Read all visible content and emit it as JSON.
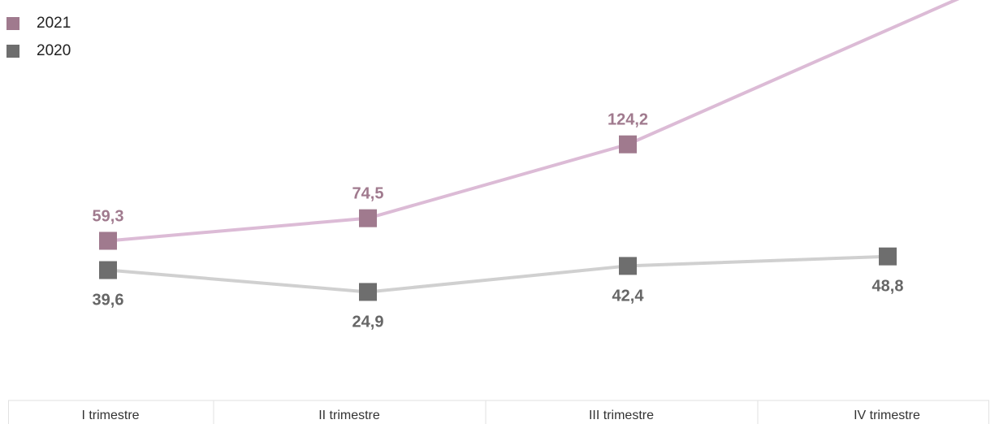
{
  "chart_data": {
    "type": "line",
    "categories": [
      "I trimestre",
      "II trimestre",
      "III trimestre",
      "IV trimestre"
    ],
    "series": [
      {
        "name": "2021",
        "values": [
          59.3,
          74.5,
          124.2,
          null
        ],
        "labels": [
          "59,3",
          "74,5",
          "124,2",
          ""
        ],
        "marker_color": "#a07a8e",
        "line_color": "#dcbbd6",
        "label_color": "#a07a8e"
      },
      {
        "name": "2020",
        "values": [
          39.6,
          24.9,
          42.4,
          48.8
        ],
        "labels": [
          "39,6",
          "24,9",
          "42,4",
          "48,8"
        ],
        "marker_color": "#6e6e6e",
        "line_color": "#d0d0d0",
        "label_color": "#666666"
      }
    ],
    "legend_position": "top-left",
    "grid": false
  }
}
